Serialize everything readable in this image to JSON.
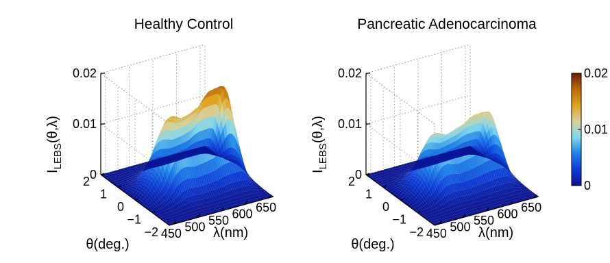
{
  "chart_data": [
    {
      "type": "surface",
      "title": "Healthy Control",
      "xlabel": "λ(nm)",
      "ylabel": "θ(deg.)",
      "zlabel": "I_LEBS(θ,λ)",
      "x_ticks": [
        "450",
        "500",
        "550",
        "600",
        "650"
      ],
      "y_ticks": [
        "-2",
        "-1",
        "0",
        "1",
        "2"
      ],
      "z_ticks": [
        "0",
        "0.01",
        "0.02"
      ],
      "xlim": [
        440,
        660
      ],
      "ylim": [
        -2,
        2
      ],
      "zlim": [
        0,
        0.02
      ],
      "peak_by_wavelength": {
        "lambda": [
          440,
          460,
          480,
          500,
          510,
          520,
          540,
          560,
          580,
          590,
          600,
          620,
          630,
          640,
          650,
          660
        ],
        "intensity": [
          0.0,
          0.002,
          0.005,
          0.012,
          0.014,
          0.0145,
          0.0135,
          0.014,
          0.015,
          0.0165,
          0.0175,
          0.0178,
          0.0175,
          0.012,
          0.004,
          0.001
        ]
      },
      "grid": true
    },
    {
      "type": "surface",
      "title": "Pancreatic Adenocarcinoma",
      "xlabel": "λ(nm)",
      "ylabel": "θ(deg.)",
      "zlabel": "I_LEBS(θ,λ)",
      "x_ticks": [
        "450",
        "500",
        "550",
        "600",
        "650"
      ],
      "y_ticks": [
        "-2",
        "-1",
        "0",
        "1",
        "2"
      ],
      "z_ticks": [
        "0",
        "0.01",
        "0.02"
      ],
      "xlim": [
        440,
        660
      ],
      "ylim": [
        -2,
        2
      ],
      "zlim": [
        0,
        0.02
      ],
      "peak_by_wavelength": {
        "lambda": [
          440,
          460,
          480,
          500,
          510,
          520,
          540,
          560,
          580,
          590,
          600,
          620,
          630,
          640,
          650,
          660
        ],
        "intensity": [
          0.0,
          0.0015,
          0.004,
          0.0095,
          0.011,
          0.0112,
          0.0102,
          0.0108,
          0.0115,
          0.0122,
          0.0127,
          0.0128,
          0.0125,
          0.0085,
          0.003,
          0.0008
        ]
      },
      "grid": true
    }
  ],
  "colorbar": {
    "ticks": [
      "0.02",
      "0.01",
      "0"
    ],
    "range": [
      0,
      0.02
    ],
    "colors": [
      "#08118f",
      "#0d3cd6",
      "#1f82e8",
      "#7ed8ef",
      "#d9d19b",
      "#e0a41f",
      "#c06a08",
      "#6e1a06"
    ]
  }
}
